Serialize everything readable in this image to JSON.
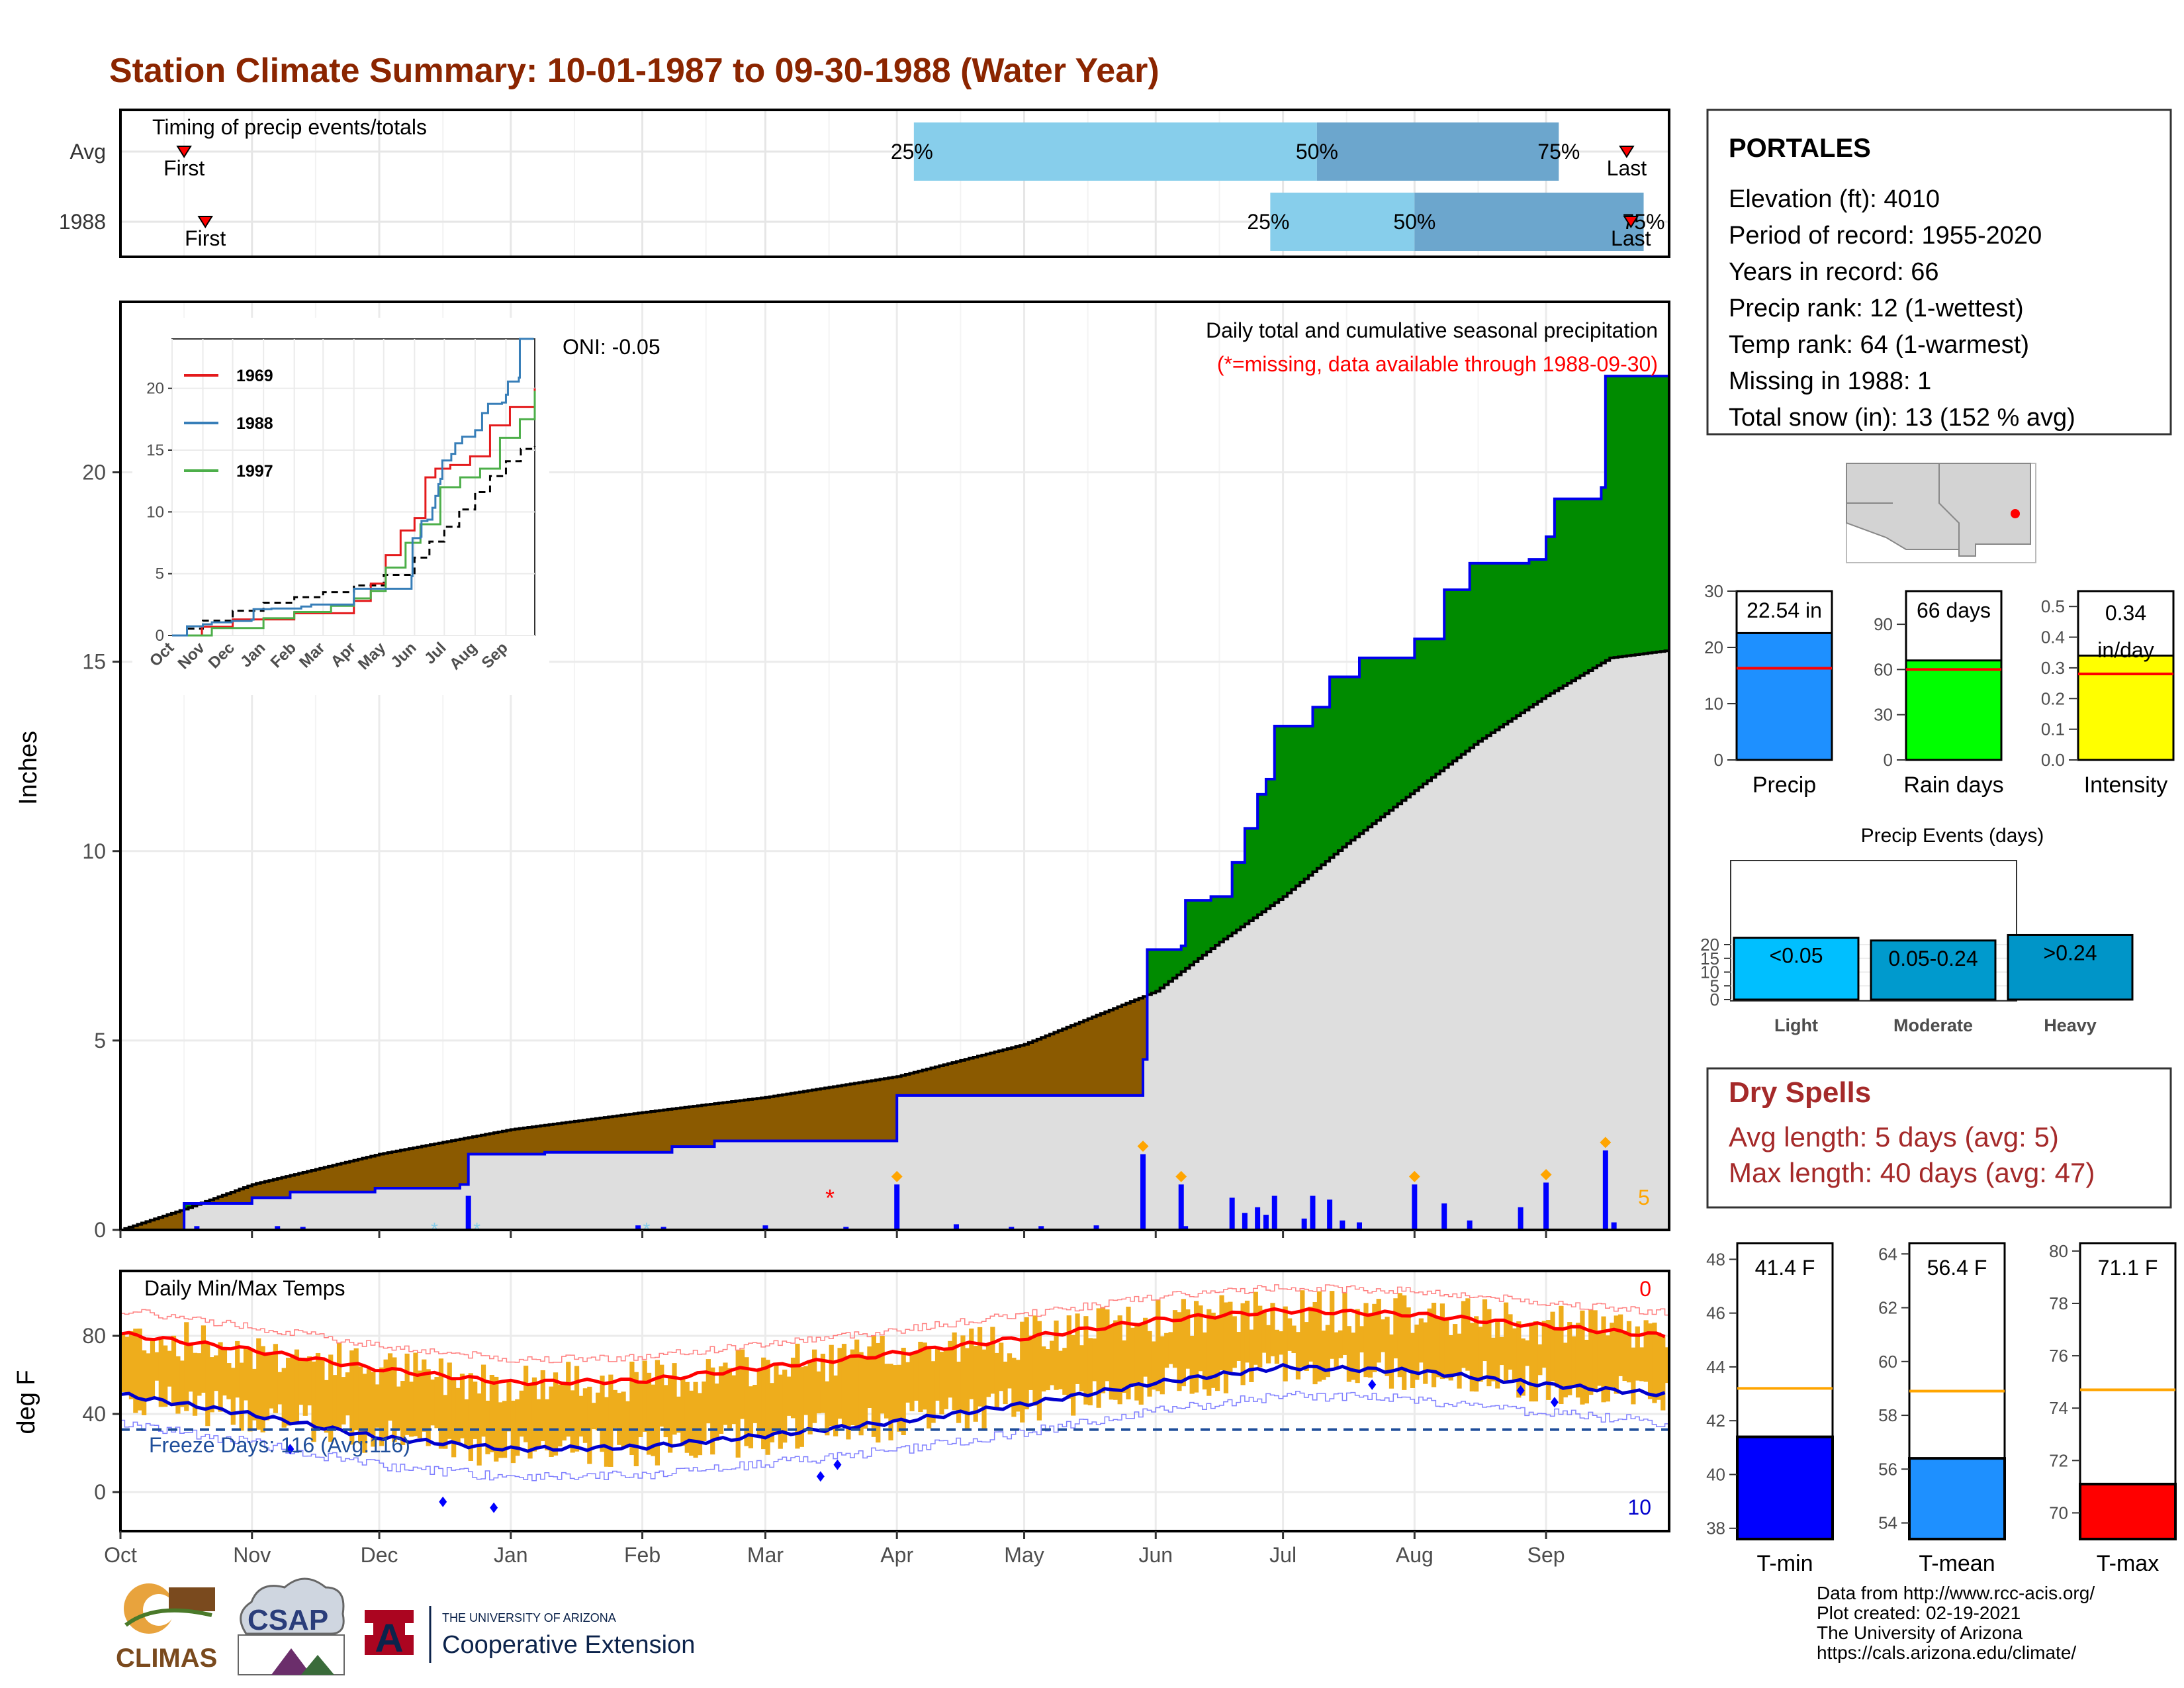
{
  "title": "Station Climate Summary: 10-01-1987 to 09-30-1988 (Water Year)",
  "colors": {
    "title": "#8b2500",
    "q_light": "#87ceeb",
    "q_dark": "#6ca6cd",
    "deficit": "#8b5a00",
    "surplus": "#008b00",
    "avg_fill": "#dedede",
    "obs_line": "#0000ee",
    "temp_bar": "#eead1c",
    "tmax_avg": "#ff0000",
    "tmin_avg": "#0000cd",
    "dry_spell": "#a52a2a",
    "precip_bar": "#1e90ff",
    "rain_bar": "#00ff00",
    "intensity_bar": "#ffff00",
    "light_bar": "#00bfff",
    "moderate_bar": "#009acd",
    "heavy_bar": "#0095c8",
    "tmin_bar": "#0000ff",
    "tmean_bar": "#1e90ff",
    "tmax_bar": "#ff0000"
  },
  "timing": {
    "label": "Timing of precip events/totals",
    "rows": [
      {
        "label": "Avg",
        "first_day": 15,
        "last_day": 355,
        "q25": 187,
        "q50": 282,
        "q75": 339,
        "first_text": "First",
        "last_text": "Last",
        "q25_text": "25%",
        "q50_text": "50%",
        "q75_text": "75%"
      },
      {
        "label": "1988",
        "first_day": 20,
        "last_day": 356,
        "q25": 271,
        "q50": 305,
        "q75": 359,
        "first_text": "First",
        "last_text": "Last",
        "q25_text": "25%",
        "q50_text": "50%",
        "q75_text": "75%"
      }
    ]
  },
  "precip_panel": {
    "ylabel": "Inches",
    "yticks": [
      0,
      5,
      10,
      15,
      20
    ],
    "ylim": [
      0,
      24.5
    ],
    "oni": "ONI: -0.05",
    "subtitle": "Daily total and cumulative seasonal precipitation",
    "missing_note": "(*=missing, data available through 1988-09-30)",
    "event_count_label": "5",
    "missing_marker": "*"
  },
  "inset": {
    "yticks": [
      0,
      5,
      10,
      15,
      20
    ],
    "months": [
      "Oct",
      "Nov",
      "Dec",
      "Jan",
      "Feb",
      "Mar",
      "Apr",
      "May",
      "Jun",
      "Jul",
      "Aug",
      "Sep"
    ],
    "legend": [
      {
        "name": "1969",
        "color": "#e41a1c"
      },
      {
        "name": "1988",
        "color": "#377eb8"
      },
      {
        "name": "1997",
        "color": "#4daf4a"
      }
    ]
  },
  "temp_panel": {
    "ylabel": "deg F",
    "label": "Daily Min/Max Temps",
    "yticks": [
      0,
      40,
      80
    ],
    "freeze_text": "Freeze Days: 116 (Avg:116)",
    "top_count": "0",
    "bottom_count": "10"
  },
  "months": [
    "Oct",
    "Nov",
    "Dec",
    "Jan",
    "Feb",
    "Mar",
    "Apr",
    "May",
    "Jun",
    "Jul",
    "Aug",
    "Sep"
  ],
  "station": {
    "name": "PORTALES",
    "lines": [
      "Elevation (ft): 4010",
      "Period of record: 1955-2020",
      "Years in record: 66",
      "Precip rank: 12 (1-wettest)",
      "Temp rank: 64 (1-warmest)",
      "Missing in 1988: 1",
      "Total snow (in): 13 (152 % avg)"
    ]
  },
  "summary_bars": [
    {
      "name": "Precip",
      "value_text": "22.54 in",
      "value": 22.54,
      "avg": 16.3,
      "ticks": [
        0,
        10,
        20,
        30
      ],
      "max": 30,
      "color": "#1e90ff"
    },
    {
      "name": "Rain days",
      "value_text": "66 days",
      "value": 66,
      "avg": 60,
      "ticks": [
        0,
        30,
        60,
        90
      ],
      "max": 112,
      "color": "#00ff00"
    },
    {
      "name": "Intensity",
      "value_text": "0.34\nin/day",
      "value": 0.34,
      "avg": 0.28,
      "ticks": [
        0.0,
        0.1,
        0.2,
        0.3,
        0.4,
        0.5
      ],
      "max": 0.55,
      "color": "#ffff00"
    }
  ],
  "precip_events": {
    "title": "Precip Events (days)",
    "yticks": [
      0,
      5,
      10,
      15,
      20
    ],
    "bars": [
      {
        "name": "Light",
        "label": "<0.05",
        "value": 22.5,
        "color": "#00bfff"
      },
      {
        "name": "Moderate",
        "label": "0.05-0.24",
        "value": 21.5,
        "color": "#009acd"
      },
      {
        "name": "Heavy",
        "label": ">0.24",
        "value": 23.5,
        "color": "#0095c8"
      }
    ]
  },
  "dry_spells": {
    "title": "Dry Spells",
    "avg_line": "Avg length: 5 days (avg: 5)",
    "max_line": "Max length: 40 days (avg: 47)"
  },
  "temp_bars": [
    {
      "name": "T-min",
      "value_text": "41.4 F",
      "value": 41.4,
      "avg": 43.2,
      "ticks": [
        38,
        40,
        42,
        44,
        46,
        48
      ],
      "ylim": [
        37.6,
        48.6
      ],
      "color": "#0000ff"
    },
    {
      "name": "T-mean",
      "value_text": "56.4 F",
      "value": 56.4,
      "avg": 58.9,
      "ticks": [
        54,
        56,
        58,
        60,
        62,
        64
      ],
      "ylim": [
        53.4,
        64.4
      ],
      "color": "#1e90ff"
    },
    {
      "name": "T-max",
      "value_text": "71.1 F",
      "value": 71.1,
      "avg": 74.7,
      "ticks": [
        70,
        72,
        74,
        76,
        78,
        80
      ],
      "ylim": [
        69.0,
        80.3
      ],
      "color": "#ff0000"
    }
  ],
  "logos": {
    "climas": "CLIMAS",
    "csap": "CSAP",
    "ua_small": "THE UNIVERSITY OF ARIZONA",
    "ua_big": "Cooperative Extension",
    "ua_mark": "A"
  },
  "credits": [
    "Data from http://www.rcc-acis.org/",
    "Plot created: 02-19-2021",
    "The University of Arizona",
    "https://cals.arizona.edu/climate/"
  ],
  "chart_data": {
    "type": "area",
    "title": "Daily total and cumulative seasonal precipitation",
    "ylabel": "Inches",
    "ylim": [
      0,
      24.5
    ],
    "x_unit": "day of water year (Oct 1 = 0)",
    "avg_cumulative": {
      "x": [
        0,
        15,
        31,
        61,
        92,
        123,
        152,
        183,
        213,
        244,
        259,
        274,
        289,
        305,
        320,
        336,
        351,
        365
      ],
      "y": [
        0,
        0.55,
        1.2,
        2.0,
        2.65,
        3.1,
        3.5,
        4.05,
        4.9,
        6.3,
        7.6,
        8.8,
        10.2,
        11.6,
        12.9,
        14.1,
        15.1,
        15.3
      ]
    },
    "observed_cumulative": {
      "x": [
        0,
        15,
        31,
        40,
        60,
        80,
        82,
        100,
        130,
        140,
        183,
        241,
        242,
        250,
        251,
        257,
        262,
        265,
        268,
        270,
        272,
        281,
        285,
        292,
        305,
        312,
        318,
        332,
        336,
        338,
        349,
        350,
        364
      ],
      "y": [
        0,
        0.7,
        0.85,
        1.0,
        1.1,
        1.2,
        2.0,
        2.05,
        2.2,
        2.35,
        3.55,
        4.5,
        7.4,
        7.5,
        8.7,
        8.8,
        9.7,
        10.6,
        11.5,
        11.9,
        13.3,
        13.8,
        14.6,
        15.1,
        15.6,
        16.9,
        17.6,
        17.7,
        18.3,
        19.3,
        19.6,
        22.54,
        22.54
      ]
    },
    "daily_precip": {
      "x": [
        18,
        37,
        43,
        82,
        122,
        128,
        152,
        171,
        183,
        197,
        210,
        217,
        230,
        241,
        250,
        251,
        262,
        265,
        268,
        270,
        272,
        279,
        281,
        285,
        288,
        292,
        305,
        312,
        318,
        330,
        336,
        350,
        352
      ],
      "y": [
        0.1,
        0.1,
        0.08,
        0.9,
        0.12,
        0.08,
        0.12,
        0.08,
        1.2,
        0.15,
        0.08,
        0.1,
        0.12,
        2.0,
        1.2,
        0.1,
        0.85,
        0.45,
        0.6,
        0.4,
        0.9,
        0.3,
        0.9,
        0.8,
        0.25,
        0.2,
        1.2,
        0.7,
        0.25,
        0.6,
        1.25,
        2.1,
        0.2
      ]
    },
    "daily_temps": {
      "note": "Daily min/max temperature bars (deg F)",
      "tmax_avg_x": [
        0,
        30,
        61,
        92,
        123,
        152,
        183,
        213,
        244,
        274,
        305,
        336,
        364
      ],
      "tmax_avg_y": [
        81,
        73,
        63,
        56,
        57,
        64,
        71,
        79,
        88,
        93,
        91,
        85,
        80
      ],
      "tmin_avg_x": [
        0,
        30,
        61,
        92,
        123,
        152,
        183,
        213,
        244,
        274,
        305,
        336,
        364
      ],
      "tmin_avg_y": [
        50,
        40,
        28,
        22,
        23,
        29,
        36,
        45,
        56,
        64,
        62,
        55,
        50
      ],
      "freeze_threshold": 32
    }
  }
}
